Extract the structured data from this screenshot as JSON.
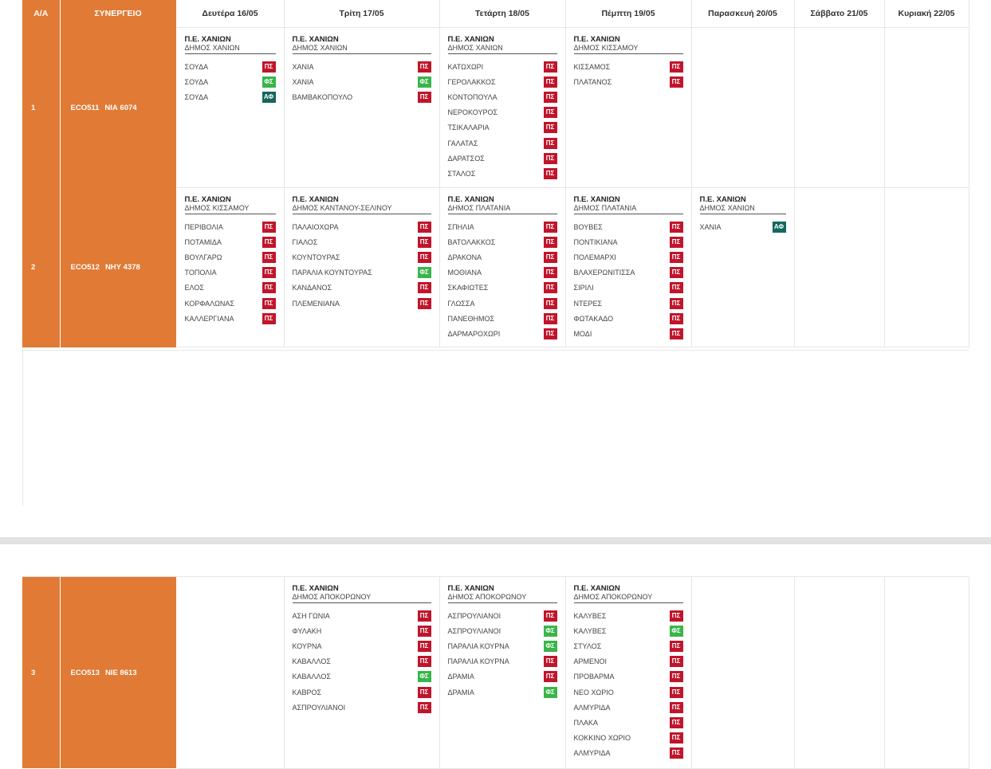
{
  "header": {
    "aa": "Α/Α",
    "synergeio": "ΣΥΝΕΡΓΕΙΟ",
    "days": [
      "Δευτέρα 16/05",
      "Τρίτη 17/05",
      "Τετάρτη 18/05",
      "Πέμπτη 19/05",
      "Παρασκευή 20/05",
      "Σάββατο 21/05",
      "Κυριακή 22/05"
    ]
  },
  "tag_labels": {
    "PS": "ΠΣ",
    "FS": "ΦΣ",
    "AF": "ΑΦ"
  },
  "colors": {
    "orange": "#e07a35",
    "ps": "#c0152b",
    "fs": "#39b54a",
    "af": "#14685c"
  },
  "rows": [
    {
      "aa": "1",
      "team": "ECO511",
      "plate": "ΝΙΑ 6074",
      "days": [
        {
          "pe": "Π.Ε. ΧΑΝΙΩΝ",
          "dimos": "ΔΗΜΟΣ ΧΑΝΙΩΝ",
          "items": [
            [
              "ΣΟΥΔΑ",
              "PS"
            ],
            [
              "ΣΟΥΔΑ",
              "FS"
            ],
            [
              "ΣΟΥΔΑ",
              "AF"
            ]
          ]
        },
        {
          "pe": "Π.Ε. ΧΑΝΙΩΝ",
          "dimos": "ΔΗΜΟΣ ΧΑΝΙΩΝ",
          "items": [
            [
              "ΧΑΝΙΑ",
              "PS"
            ],
            [
              "ΧΑΝΙΑ",
              "FS"
            ],
            [
              "ΒΑΜΒΑΚΟΠΟΥΛΟ",
              "PS"
            ]
          ]
        },
        {
          "pe": "Π.Ε. ΧΑΝΙΩΝ",
          "dimos": "ΔΗΜΟΣ ΧΑΝΙΩΝ",
          "items": [
            [
              "ΚΑΤΩΧΩΡΙ",
              "PS"
            ],
            [
              "ΓΕΡΟΛΑΚΚΟΣ",
              "PS"
            ],
            [
              "ΚΟΝΤΟΠΟΥΛΑ",
              "PS"
            ],
            [
              "ΝΕΡΟΚΟΥΡΟΣ",
              "PS"
            ],
            [
              "ΤΣΙΚΑΛΑΡΙΑ",
              "PS"
            ],
            [
              "ΓΑΛΑΤΑΣ",
              "PS"
            ],
            [
              "ΔΑΡΑΤΣΟΣ",
              "PS"
            ],
            [
              "ΣΤΑΛΟΣ",
              "PS"
            ]
          ]
        },
        {
          "pe": "Π.Ε. ΧΑΝΙΩΝ",
          "dimos": "ΔΗΜΟΣ ΚΙΣΣΑΜΟΥ",
          "items": [
            [
              "ΚΙΣΣΑΜΟΣ",
              "PS"
            ],
            [
              "ΠΛΑΤΑΝΟΣ",
              "PS"
            ]
          ]
        },
        null,
        null,
        null
      ]
    },
    {
      "aa": "2",
      "team": "ECO512",
      "plate": "ΝΗΥ 4378",
      "days": [
        {
          "pe": "Π.Ε. ΧΑΝΙΩΝ",
          "dimos": "ΔΗΜΟΣ ΚΙΣΣΑΜΟΥ",
          "items": [
            [
              "ΠΕΡΙΒΟΛΙΑ",
              "PS"
            ],
            [
              "ΠΟΤΑΜΙΔΑ",
              "PS"
            ],
            [
              "ΒΟΥΛΓΑΡΩ",
              "PS"
            ],
            [
              "ΤΟΠΟΛΙΑ",
              "PS"
            ],
            [
              "ΕΛΟΣ",
              "PS"
            ],
            [
              "ΚΟΡΦΑΛΩΝΑΣ",
              "PS"
            ],
            [
              "ΚΑΛΛΕΡΓΙΑΝΑ",
              "PS"
            ]
          ]
        },
        {
          "pe": "Π.Ε. ΧΑΝΙΩΝ",
          "dimos": "ΔΗΜΟΣ ΚΑΝΤΑΝΟΥ-ΣΕΛΙΝΟΥ",
          "items": [
            [
              "ΠΑΛΑΙΟΧΩΡΑ",
              "PS"
            ],
            [
              "ΓΙΑΛΟΣ",
              "PS"
            ],
            [
              "ΚΟΥΝΤΟΥΡΑΣ",
              "PS"
            ],
            [
              "ΠΑΡΑΛΙΑ ΚΟΥΝΤΟΥΡΑΣ",
              "FS"
            ],
            [
              "ΚΑΝΔΑΝΟΣ",
              "PS"
            ],
            [
              "ΠΛΕΜΕΝΙΑΝΑ",
              "PS"
            ]
          ]
        },
        {
          "pe": "Π.Ε. ΧΑΝΙΩΝ",
          "dimos": "ΔΗΜΟΣ ΠΛΑΤΑΝΙΑ",
          "items": [
            [
              "ΣΠΗΛΙΑ",
              "PS"
            ],
            [
              "ΒΑΤΟΛΑΚΚΟΣ",
              "PS"
            ],
            [
              "ΔΡΑΚΟΝΑ",
              "PS"
            ],
            [
              "ΜΟΘΙΑΝΑ",
              "PS"
            ],
            [
              "ΣΚΑΦΙΩΤΕΣ",
              "PS"
            ],
            [
              "ΓΛΩΣΣΑ",
              "PS"
            ],
            [
              "ΠΑΝΕΘΗΜΟΣ",
              "PS"
            ],
            [
              "ΔΑΡΜΑΡΟΧΩΡΙ",
              "PS"
            ]
          ]
        },
        {
          "pe": "Π.Ε. ΧΑΝΙΩΝ",
          "dimos": "ΔΗΜΟΣ ΠΛΑΤΑΝΙΑ",
          "items": [
            [
              "ΒΟΥΒΕΣ",
              "PS"
            ],
            [
              "ΠΟΝΤΙΚΙΑΝΑ",
              "PS"
            ],
            [
              "ΠΟΛΕΜΑΡΧΙ",
              "PS"
            ],
            [
              "ΒΛΑΧΕΡΩΝΙΤΙΣΣΑ",
              "PS"
            ],
            [
              "ΣΙΡΙΛΙ",
              "PS"
            ],
            [
              "ΝΤΕΡΕΣ",
              "PS"
            ],
            [
              "ΦΩΤΑΚΑΔΟ",
              "PS"
            ],
            [
              "ΜΟΔΙ",
              "PS"
            ]
          ]
        },
        {
          "pe": "Π.Ε. ΧΑΝΙΩΝ",
          "dimos": "ΔΗΜΟΣ ΧΑΝΙΩΝ",
          "items": [
            [
              "ΧΑΝΙΑ",
              "AF"
            ]
          ]
        },
        null,
        null
      ]
    },
    {
      "aa": "3",
      "team": "ECO513",
      "plate": "ΝΙΕ 8613",
      "days": [
        null,
        {
          "pe": "Π.Ε. ΧΑΝΙΩΝ",
          "dimos": "ΔΗΜΟΣ ΑΠΟΚΟΡΩΝΟΥ",
          "items": [
            [
              "ΑΣΗ ΓΩΝΙΑ",
              "PS"
            ],
            [
              "ΦΥΛΑΚΗ",
              "PS"
            ],
            [
              "ΚΟΥΡΝΑ",
              "PS"
            ],
            [
              "ΚΑΒΑΛΛΟΣ",
              "PS"
            ],
            [
              "ΚΑΒΑΛΛΟΣ",
              "FS"
            ],
            [
              "ΚΑΒΡΟΣ",
              "PS"
            ],
            [
              "ΑΣΠΡΟΥΛΙΑΝΟΙ",
              "PS"
            ]
          ]
        },
        {
          "pe": "Π.Ε. ΧΑΝΙΩΝ",
          "dimos": "ΔΗΜΟΣ ΑΠΟΚΟΡΩΝΟΥ",
          "items": [
            [
              "ΑΣΠΡΟΥΛΙΑΝΟΙ",
              "PS"
            ],
            [
              "ΑΣΠΡΟΥΛΙΑΝΟΙ",
              "FS"
            ],
            [
              "ΠΑΡΑΛΙΑ ΚΟΥΡΝΑ",
              "FS"
            ],
            [
              "ΠΑΡΑΛΙΑ ΚΟΥΡΝΑ",
              "PS"
            ],
            [
              "ΔΡΑΜΙΑ",
              "PS"
            ],
            [
              "ΔΡΑΜΙΑ",
              "FS"
            ]
          ]
        },
        {
          "pe": "Π.Ε. ΧΑΝΙΩΝ",
          "dimos": "ΔΗΜΟΣ ΑΠΟΚΟΡΩΝΟΥ",
          "items": [
            [
              "ΚΑΛΥΒΕΣ",
              "PS"
            ],
            [
              "ΚΑΛΥΒΕΣ",
              "FS"
            ],
            [
              "ΣΤΥΛΟΣ",
              "PS"
            ],
            [
              "ΑΡΜΕΝΟΙ",
              "PS"
            ],
            [
              "ΠΡΟΒΑΡΜΑ",
              "PS"
            ],
            [
              "ΝΕΟ ΧΩΡΙΟ",
              "PS"
            ],
            [
              "ΑΛΜΥΡΙΔΑ",
              "PS"
            ],
            [
              "ΠΛΑΚΑ",
              "PS"
            ],
            [
              "ΚΟΚΚΙΝΟ ΧΩΡΙΟ",
              "PS"
            ],
            [
              "ΑΛΜΥΡΙΔΑ",
              "PS"
            ]
          ]
        },
        null,
        null,
        null
      ]
    }
  ]
}
